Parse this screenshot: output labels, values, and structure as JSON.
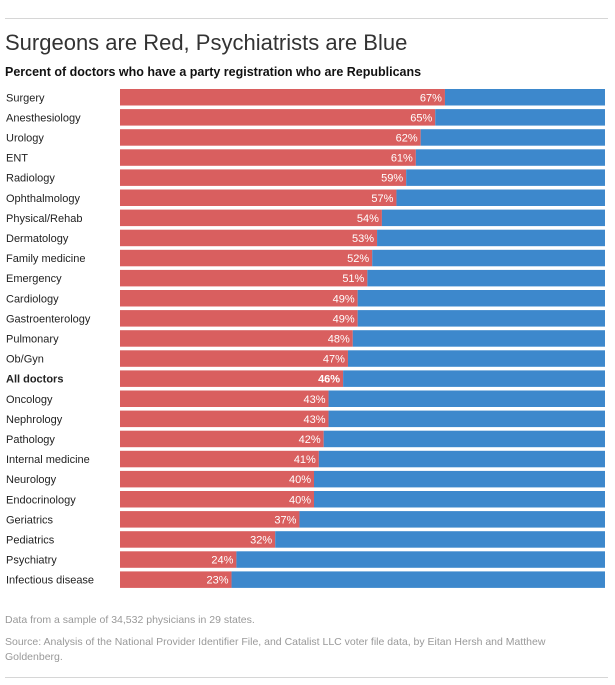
{
  "header": {
    "title": "Surgeons are Red, Psychiatrists are Blue",
    "subtitle": "Percent of doctors who have a party registration who are Republicans"
  },
  "footer": {
    "note": "Data from a sample of 34,532 physicians in 29 states.",
    "source": "Source: Analysis of the National Provider Identifier File, and Catalist LLC voter file data, by Eitan Hersh and Matthew Goldenberg."
  },
  "colors": {
    "republican": "#d95f5f",
    "democrat": "#3d88cc"
  },
  "chart_data": {
    "type": "bar",
    "orientation": "horizontal",
    "stacked": true,
    "title": "Surgeons are Red, Psychiatrists are Blue",
    "subtitle": "Percent of doctors who have a party registration who are Republicans",
    "xlim": [
      0,
      100
    ],
    "grid": false,
    "categories": [
      "Surgery",
      "Anesthesiology",
      "Urology",
      "ENT",
      "Radiology",
      "Ophthalmology",
      "Physical/Rehab",
      "Dermatology",
      "Family medicine",
      "Emergency",
      "Cardiology",
      "Gastroenterology",
      "Pulmonary",
      "Ob/Gyn",
      "All doctors",
      "Oncology",
      "Nephrology",
      "Pathology",
      "Internal medicine",
      "Neurology",
      "Endocrinology",
      "Geriatrics",
      "Pediatrics",
      "Psychiatry",
      "Infectious disease"
    ],
    "values": [
      67,
      65,
      62,
      61,
      59,
      57,
      54,
      53,
      52,
      51,
      49,
      49,
      48,
      47,
      46,
      43,
      43,
      42,
      41,
      40,
      40,
      37,
      32,
      24,
      23
    ],
    "value_labels": [
      "67%",
      "65%",
      "62%",
      "61%",
      "59%",
      "57%",
      "54%",
      "53%",
      "52%",
      "51%",
      "49%",
      "49%",
      "48%",
      "47%",
      "46%",
      "43%",
      "43%",
      "42%",
      "41%",
      "40%",
      "40%",
      "37%",
      "32%",
      "24%",
      "23%"
    ],
    "highlight_category": "All doctors"
  }
}
